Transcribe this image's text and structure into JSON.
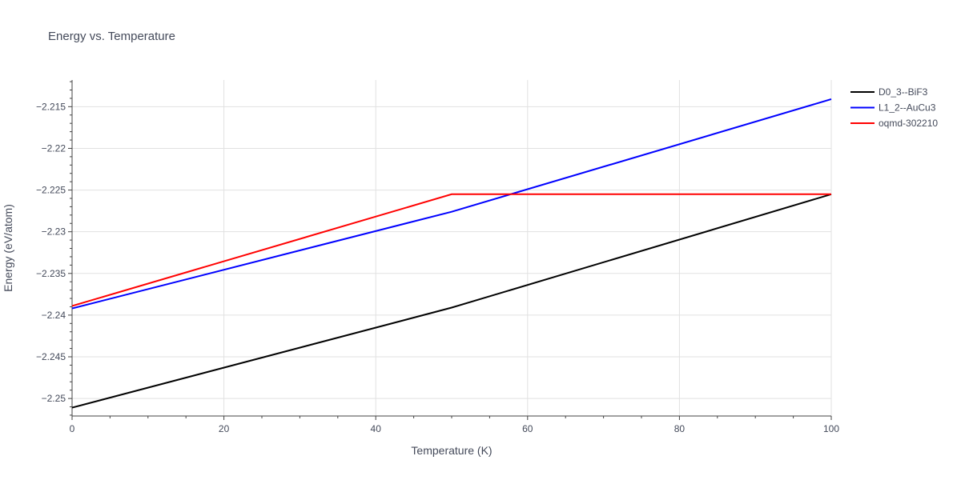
{
  "chart_data": {
    "type": "line",
    "title": "Energy vs. Temperature",
    "xlabel": "Temperature (K)",
    "ylabel": "Energy (eV/atom)",
    "xlim": [
      0,
      100
    ],
    "ylim": [
      -2.2521,
      -2.2118
    ],
    "x_ticks": [
      0,
      20,
      40,
      60,
      80,
      100
    ],
    "x_tick_labels": [
      "0",
      "20",
      "40",
      "60",
      "80",
      "100"
    ],
    "y_ticks": [
      -2.25,
      -2.245,
      -2.24,
      -2.235,
      -2.23,
      -2.225,
      -2.22,
      -2.215
    ],
    "y_tick_labels": [
      "−2.25",
      "−2.245",
      "−2.24",
      "−2.235",
      "−2.23",
      "−2.225",
      "−2.22",
      "−2.215"
    ],
    "grid": true,
    "legend_position": "top-right",
    "series": [
      {
        "name": "D0_3--BiF3",
        "color": "#000000",
        "x": [
          0,
          50,
          100
        ],
        "y": [
          -2.2511,
          -2.2391,
          -2.2255
        ]
      },
      {
        "name": "L1_2--AuCu3",
        "color": "#0000ff",
        "x": [
          0,
          50,
          100
        ],
        "y": [
          -2.2392,
          -2.2276,
          -2.2141
        ]
      },
      {
        "name": "oqmd-302210",
        "color": "#ff0000",
        "x": [
          0,
          50,
          100
        ],
        "y": [
          -2.2389,
          -2.2255,
          -2.2255
        ]
      }
    ]
  }
}
